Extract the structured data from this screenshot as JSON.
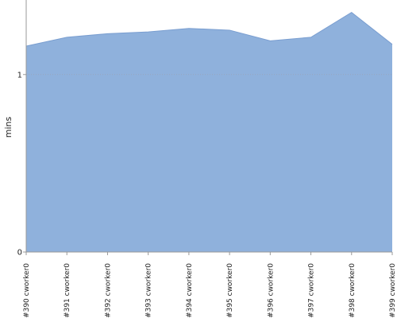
{
  "chart_data": {
    "type": "area",
    "title": "",
    "xlabel": "",
    "ylabel": "mins",
    "categories": [
      "#390 cworker0",
      "#391 cworker0",
      "#392 cworker0",
      "#393 cworker0",
      "#394 cworker0",
      "#395 cworker0",
      "#396 cworker0",
      "#397 cworker0",
      "#398 cworker0",
      "#399 cworker0"
    ],
    "series": [
      {
        "values": [
          1.16,
          1.21,
          1.23,
          1.24,
          1.26,
          1.25,
          1.19,
          1.21,
          1.35,
          1.17
        ]
      }
    ],
    "yticks": [
      {
        "value": 0,
        "label": "0"
      },
      {
        "value": 1,
        "label": "1"
      }
    ],
    "ylim": [
      0,
      1.42
    ],
    "grid": true,
    "legend": "none",
    "colors": {
      "fill": "#8fb1dc",
      "stroke": "#7a9ed0",
      "grid": "#9aa4b4",
      "axis": "#999999"
    }
  }
}
